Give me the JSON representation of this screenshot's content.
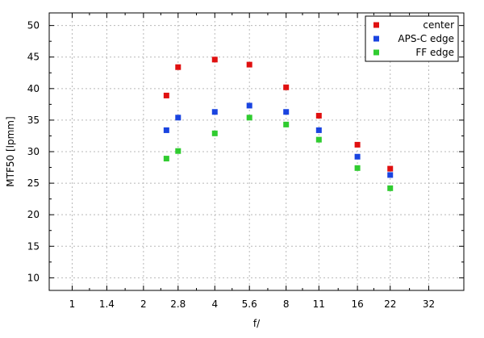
{
  "chart_data": {
    "type": "scatter",
    "xlabel": "f/",
    "ylabel": "MTF50 [lpmm]",
    "x_scale": "log2",
    "x_tick_labels": [
      "1",
      "1.4",
      "2",
      "2.8",
      "4",
      "5.6",
      "8",
      "11",
      "16",
      "22",
      "32"
    ],
    "x_tick_values": [
      1,
      1.4,
      2,
      2.8,
      4,
      5.6,
      8,
      11,
      16,
      22,
      32
    ],
    "xlim": [
      0.8,
      45
    ],
    "ylim": [
      8,
      52
    ],
    "y_ticks": [
      10,
      15,
      20,
      25,
      30,
      35,
      40,
      45,
      50
    ],
    "grid": true,
    "legend_position": "top-right",
    "series": [
      {
        "name": "center",
        "color": "#e01010",
        "points": [
          {
            "x": 2.5,
            "y": 38.9
          },
          {
            "x": 2.8,
            "y": 43.4
          },
          {
            "x": 4,
            "y": 44.6
          },
          {
            "x": 5.6,
            "y": 43.8
          },
          {
            "x": 8,
            "y": 40.2
          },
          {
            "x": 11,
            "y": 35.7
          },
          {
            "x": 16,
            "y": 31.1
          },
          {
            "x": 22,
            "y": 27.3
          }
        ]
      },
      {
        "name": "APS-C edge",
        "color": "#1a44e0",
        "points": [
          {
            "x": 2.5,
            "y": 33.4
          },
          {
            "x": 2.8,
            "y": 35.4
          },
          {
            "x": 4,
            "y": 36.3
          },
          {
            "x": 5.6,
            "y": 37.3
          },
          {
            "x": 8,
            "y": 36.3
          },
          {
            "x": 11,
            "y": 33.4
          },
          {
            "x": 16,
            "y": 29.2
          },
          {
            "x": 22,
            "y": 26.3
          }
        ]
      },
      {
        "name": "FF edge",
        "color": "#30cc30",
        "points": [
          {
            "x": 2.5,
            "y": 28.9
          },
          {
            "x": 2.8,
            "y": 30.1
          },
          {
            "x": 4,
            "y": 32.9
          },
          {
            "x": 5.6,
            "y": 35.4
          },
          {
            "x": 8,
            "y": 34.3
          },
          {
            "x": 11,
            "y": 31.9
          },
          {
            "x": 16,
            "y": 27.4
          },
          {
            "x": 22,
            "y": 24.2
          }
        ]
      }
    ]
  }
}
